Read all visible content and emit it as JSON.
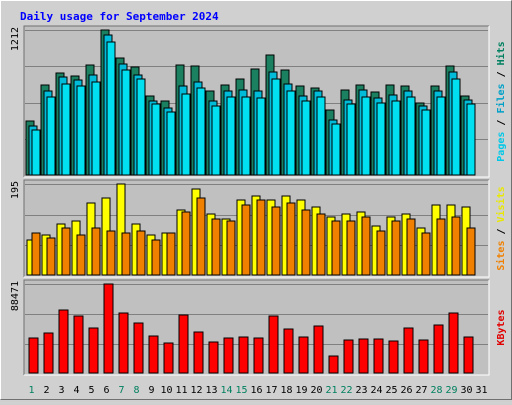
{
  "chart_data": {
    "type": "bar",
    "title": "Daily usage for September 2024",
    "categories": [
      "1",
      "2",
      "3",
      "4",
      "5",
      "6",
      "7",
      "8",
      "9",
      "10",
      "11",
      "12",
      "13",
      "14",
      "15",
      "16",
      "17",
      "18",
      "19",
      "20",
      "21",
      "22",
      "23",
      "24",
      "25",
      "26",
      "27",
      "28",
      "29",
      "30",
      "31"
    ],
    "weekend_categories": [
      "1",
      "7",
      "8",
      "14",
      "15",
      "21",
      "22",
      "28",
      "29"
    ],
    "panels": [
      {
        "id": "hits-files-pages",
        "max_label": "1212",
        "ymax": 1212,
        "axis_label_parts": [
          {
            "text": "Pages",
            "color": "#00c8e8"
          },
          {
            "text": " / ",
            "color": "#000000"
          },
          {
            "text": "Files",
            "color": "#00a0c8"
          },
          {
            "text": " / ",
            "color": "#000000"
          },
          {
            "text": "Hits",
            "color": "#008060"
          }
        ],
        "series": [
          {
            "name": "Hits",
            "color": "#1a8060",
            "values": [
              450,
              750,
              850,
              830,
              920,
              1212,
              980,
              900,
              660,
              620,
              920,
              910,
              700,
              750,
              800,
              890,
              1000,
              880,
              740,
              730,
              540,
              710,
              750,
              690,
              750,
              740,
              600,
              740,
              910,
              660,
              0
            ]
          },
          {
            "name": "Files",
            "color": "#00bcd8",
            "values": [
              410,
              700,
              820,
              790,
              840,
              1170,
              930,
              840,
              620,
              560,
              740,
              780,
              620,
              700,
              710,
              700,
              860,
              760,
              660,
              700,
              460,
              630,
              710,
              640,
              670,
              700,
              580,
              700,
              860,
              630,
              0
            ]
          },
          {
            "name": "Pages",
            "color": "#00e0f0",
            "values": [
              380,
              650,
              760,
              740,
              780,
              1110,
              880,
              800,
              590,
              530,
              680,
              730,
              580,
              650,
              650,
              640,
              800,
              700,
              620,
              650,
              430,
              590,
              650,
              600,
              620,
              650,
              540,
              650,
              800,
              590,
              0
            ]
          }
        ]
      },
      {
        "id": "visits-sites",
        "max_label": "195",
        "ymax": 195,
        "axis_label_parts": [
          {
            "text": "Sites",
            "color": "#f08000"
          },
          {
            "text": " / ",
            "color": "#000000"
          },
          {
            "text": "Visits",
            "color": "#e8e800"
          }
        ],
        "series": [
          {
            "name": "Visits",
            "color": "#ffff00",
            "values": [
              75,
              85,
              110,
              115,
              155,
              165,
              195,
              110,
              85,
              90,
              140,
              185,
              130,
              120,
              160,
              170,
              160,
              170,
              160,
              145,
              125,
              130,
              135,
              105,
              125,
              130,
              100,
              150,
              150,
              145,
              0
            ]
          },
          {
            "name": "Sites",
            "color": "#f08000",
            "values": [
              90,
              80,
              100,
              85,
              100,
              95,
              90,
              95,
              75,
              90,
              135,
              165,
              120,
              115,
              150,
              160,
              145,
              155,
              140,
              130,
              115,
              115,
              125,
              95,
              115,
              120,
              90,
              120,
              125,
              100,
              0
            ]
          }
        ]
      },
      {
        "id": "kbytes",
        "max_label": "88471",
        "ymax": 88471,
        "axis_label_parts": [
          {
            "text": "KBytes",
            "color": "#e00000"
          }
        ],
        "series": [
          {
            "name": "KBytes",
            "color": "#ff0000",
            "values": [
              35000,
              40000,
              63000,
              57000,
              45000,
              88471,
              60000,
              50000,
              37000,
              30000,
              58000,
              41000,
              31000,
              35000,
              36000,
              35000,
              57000,
              44000,
              36000,
              47000,
              17000,
              33000,
              34000,
              34000,
              32000,
              45000,
              33000,
              48000,
              60000,
              36000,
              0
            ]
          }
        ]
      }
    ]
  }
}
